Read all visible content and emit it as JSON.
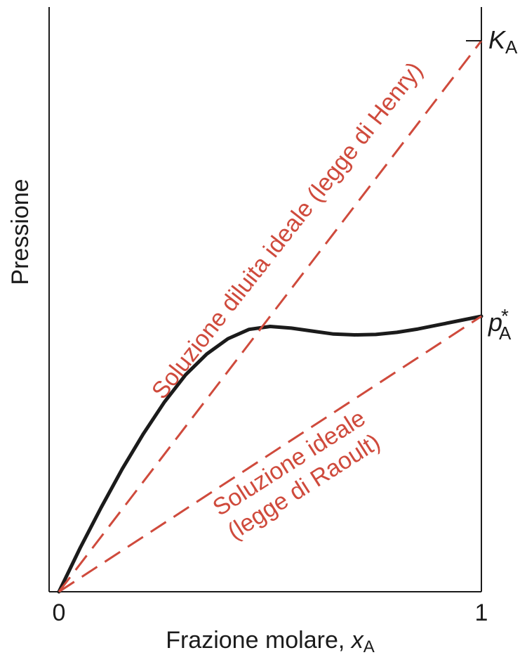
{
  "chart_data": {
    "type": "line",
    "xlabel": "Frazione molare, ",
    "xlabel_var": "x",
    "xlabel_sub": "A",
    "ylabel": "Pressione",
    "xlim": [
      0,
      1
    ],
    "ylim": [
      0,
      1.32
    ],
    "x_ticks": [
      "0",
      "1"
    ],
    "right_labels": {
      "k": {
        "main": "K",
        "sub": "A",
        "y": 1.3
      },
      "p": {
        "main": "p",
        "sup": "*",
        "sub": "A",
        "y": 0.65
      }
    },
    "series": [
      {
        "name": "",
        "style": "solid",
        "color": "#1b1b1b",
        "x": [
          0,
          0.05,
          0.1,
          0.15,
          0.2,
          0.25,
          0.3,
          0.35,
          0.4,
          0.45,
          0.5,
          0.55,
          0.6,
          0.65,
          0.7,
          0.75,
          0.8,
          0.85,
          0.9,
          0.95,
          1.0
        ],
        "y": [
          0,
          0.103,
          0.199,
          0.29,
          0.373,
          0.448,
          0.512,
          0.561,
          0.597,
          0.619,
          0.626,
          0.622,
          0.615,
          0.608,
          0.606,
          0.607,
          0.612,
          0.62,
          0.63,
          0.64,
          0.65
        ]
      },
      {
        "name": "",
        "style": "dashed",
        "color": "#cf4a3c",
        "x": [
          0,
          1
        ],
        "y": [
          0,
          1.3
        ]
      },
      {
        "name": "",
        "style": "dashed",
        "color": "#cf4a3c",
        "x": [
          0,
          1
        ],
        "y": [
          0,
          0.65
        ]
      }
    ],
    "annotations": {
      "henry": "Soluzione diluita ideale (legge di Henry)",
      "raoult_line1": "Soluzione ideale",
      "raoult_line2": "(legge di Raoult)"
    },
    "grid": false,
    "legend": "none"
  }
}
